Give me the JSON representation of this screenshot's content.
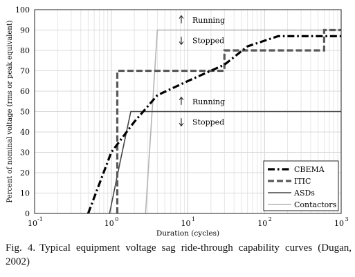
{
  "caption": {
    "figure_label": "Fig. 4.",
    "text": "Typical equipment voltage sag ride-through capability curves (Dugan, 2002)"
  },
  "chart_data": {
    "type": "line",
    "title": "",
    "xlabel": "Duration (cycles)",
    "ylabel": "Percent of nominal voltage (rms or peak equivalent)",
    "xscale": "log",
    "xlim": [
      0.1,
      1000
    ],
    "ylim": [
      0,
      100
    ],
    "x_ticks": [
      {
        "base": "10",
        "exp": "-1",
        "value": 0.1
      },
      {
        "base": "10",
        "exp": "0",
        "value": 1
      },
      {
        "base": "10",
        "exp": "1",
        "value": 10
      },
      {
        "base": "10",
        "exp": "2",
        "value": 100
      },
      {
        "base": "10",
        "exp": "3",
        "value": 1000
      }
    ],
    "y_ticks": [
      0,
      10,
      20,
      30,
      40,
      50,
      60,
      70,
      80,
      90,
      100
    ],
    "grid": true,
    "legend_position": "bottom-right",
    "series": [
      {
        "name": "CBEMA",
        "style": "dash-dot",
        "color": "#000000",
        "points": [
          [
            0.5,
            0
          ],
          [
            1.0,
            30
          ],
          [
            2.0,
            45
          ],
          [
            4.0,
            58
          ],
          [
            10,
            65
          ],
          [
            30,
            73
          ],
          [
            60,
            82
          ],
          [
            150,
            87
          ],
          [
            1000,
            87
          ]
        ]
      },
      {
        "name": "ITIC",
        "style": "dashed",
        "color": "#595959",
        "points": [
          [
            1.2,
            0
          ],
          [
            1.2,
            70
          ],
          [
            30,
            70
          ],
          [
            30,
            80
          ],
          [
            600,
            80
          ],
          [
            600,
            90
          ],
          [
            1000,
            90
          ]
        ]
      },
      {
        "name": "ASDs",
        "style": "solid",
        "color": "#444444",
        "points": [
          [
            0.95,
            0
          ],
          [
            1.3,
            25
          ],
          [
            1.8,
            50
          ],
          [
            1000,
            50
          ]
        ]
      },
      {
        "name": "Contactors",
        "style": "solid-light",
        "color": "#b3b3b3",
        "points": [
          [
            2.8,
            0
          ],
          [
            4.0,
            90
          ],
          [
            1000,
            90
          ]
        ]
      }
    ],
    "annotations": [
      {
        "text": "Running",
        "arrow": "up",
        "x": 10,
        "y": 95
      },
      {
        "text": "Stopped",
        "arrow": "down",
        "x": 10,
        "y": 85
      },
      {
        "text": "Running",
        "arrow": "up",
        "x": 10,
        "y": 55
      },
      {
        "text": "Stopped",
        "arrow": "down",
        "x": 10,
        "y": 45
      }
    ]
  }
}
